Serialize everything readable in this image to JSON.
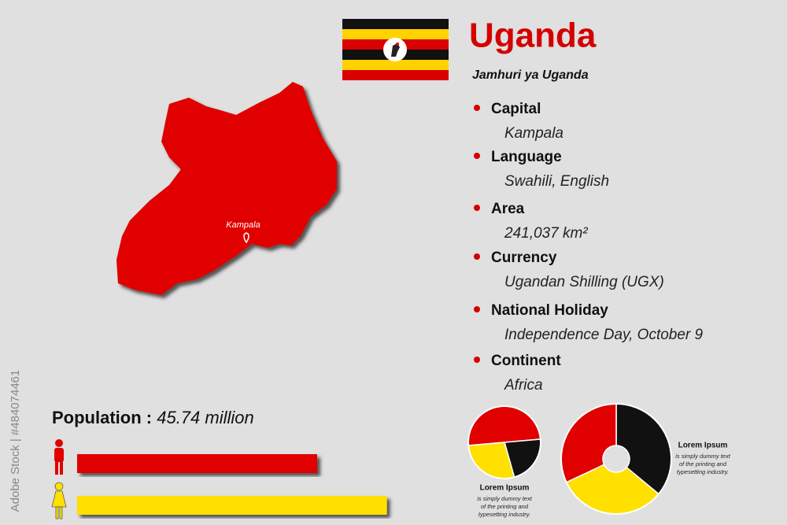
{
  "header": {
    "title": "Uganda",
    "subtitle": "Jamhuri ya Uganda"
  },
  "map": {
    "city": "Kampala"
  },
  "facts": [
    {
      "label": "Capital",
      "value": "Kampala"
    },
    {
      "label": "Language",
      "value": "Swahili, English"
    },
    {
      "label": "Area",
      "value": "241,037 km²"
    },
    {
      "label": "Currency",
      "value": "Ugandan Shilling (UGX)"
    },
    {
      "label": "National Holiday",
      "value": "Independence Day, October 9"
    },
    {
      "label": "Continent",
      "value": "Africa"
    }
  ],
  "population": {
    "label": "Population :",
    "value": "45.74 million"
  },
  "watermark": "Adobe Stock | #484074461",
  "chart_data": [
    {
      "type": "bar",
      "values": [
        62,
        80
      ],
      "colors": [
        "#e00000",
        "#ffe000"
      ],
      "xlim": [
        0,
        100
      ]
    },
    {
      "type": "pie",
      "values": [
        50,
        22,
        28
      ],
      "colors": [
        "#e00000",
        "#111111",
        "#ffe000"
      ],
      "caption": {
        "title": "Lorem Ipsum",
        "lines": [
          "is simply dummy text",
          "of the printing and",
          "typesetting industry."
        ]
      }
    },
    {
      "type": "donut",
      "values": [
        36,
        32,
        32
      ],
      "colors": [
        "#111111",
        "#ffe000",
        "#e00000"
      ],
      "caption": {
        "title": "Lorem Ipsum",
        "lines": [
          "is simply dummy text",
          "of the printing and",
          "typesetting industry."
        ]
      }
    }
  ]
}
